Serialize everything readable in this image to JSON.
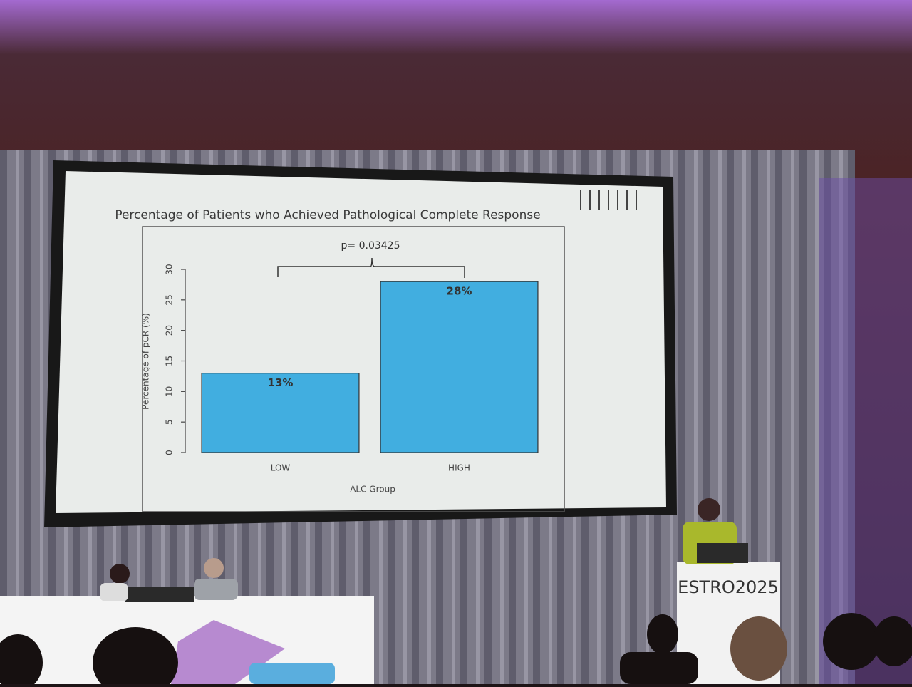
{
  "chart_data": {
    "type": "bar",
    "title": "Percentage of Patients who Achieved Pathological Complete Response",
    "annotation": "p= 0.03425",
    "x_label": "ALC Group",
    "y_label": "Percentage of pCR (%)",
    "categories": [
      "LOW",
      "HIGH"
    ],
    "values": [
      13,
      28
    ],
    "value_labels": [
      "13%",
      "28%"
    ],
    "color": "#41aee0",
    "ylim": [
      0,
      30
    ],
    "yticks": [
      0,
      5,
      10,
      15,
      20,
      25,
      30
    ]
  },
  "scene": {
    "podium_text": "ESTRO2025"
  }
}
